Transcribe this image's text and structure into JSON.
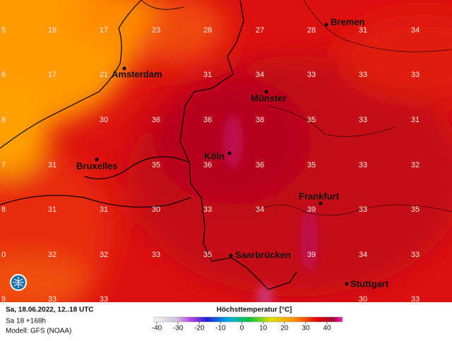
{
  "map": {
    "grid_labels": [
      [
        5,
        16,
        17,
        23,
        28,
        27,
        28,
        31,
        34
      ],
      [
        6,
        17,
        21,
        null,
        31,
        34,
        33,
        33,
        33
      ],
      [
        8,
        null,
        30,
        36,
        36,
        38,
        35,
        33,
        31
      ],
      [
        7,
        31,
        null,
        35,
        36,
        36,
        35,
        33,
        32
      ],
      [
        8,
        31,
        31,
        30,
        33,
        34,
        39,
        33,
        35
      ],
      [
        0,
        32,
        32,
        33,
        35,
        null,
        39,
        34,
        33
      ],
      [
        9,
        33,
        33,
        null,
        null,
        null,
        null,
        30,
        33
      ]
    ],
    "cities": [
      "Bremen",
      "Amsterdam",
      "Münster",
      "Köln",
      "Bruxelles",
      "Frankfurt",
      "Saarbrücken",
      "Stuttgart"
    ]
  },
  "footer": {
    "date": "Sa, 18.06.2022, 12..18 UTC",
    "run": "Sa 18 +168h",
    "model": "Modell: GFS (NOAA)",
    "legend_title": "Höchsttemperatur [°C]",
    "legend_ticks": [
      -40,
      -30,
      -20,
      -10,
      0,
      10,
      20,
      30,
      40
    ]
  }
}
